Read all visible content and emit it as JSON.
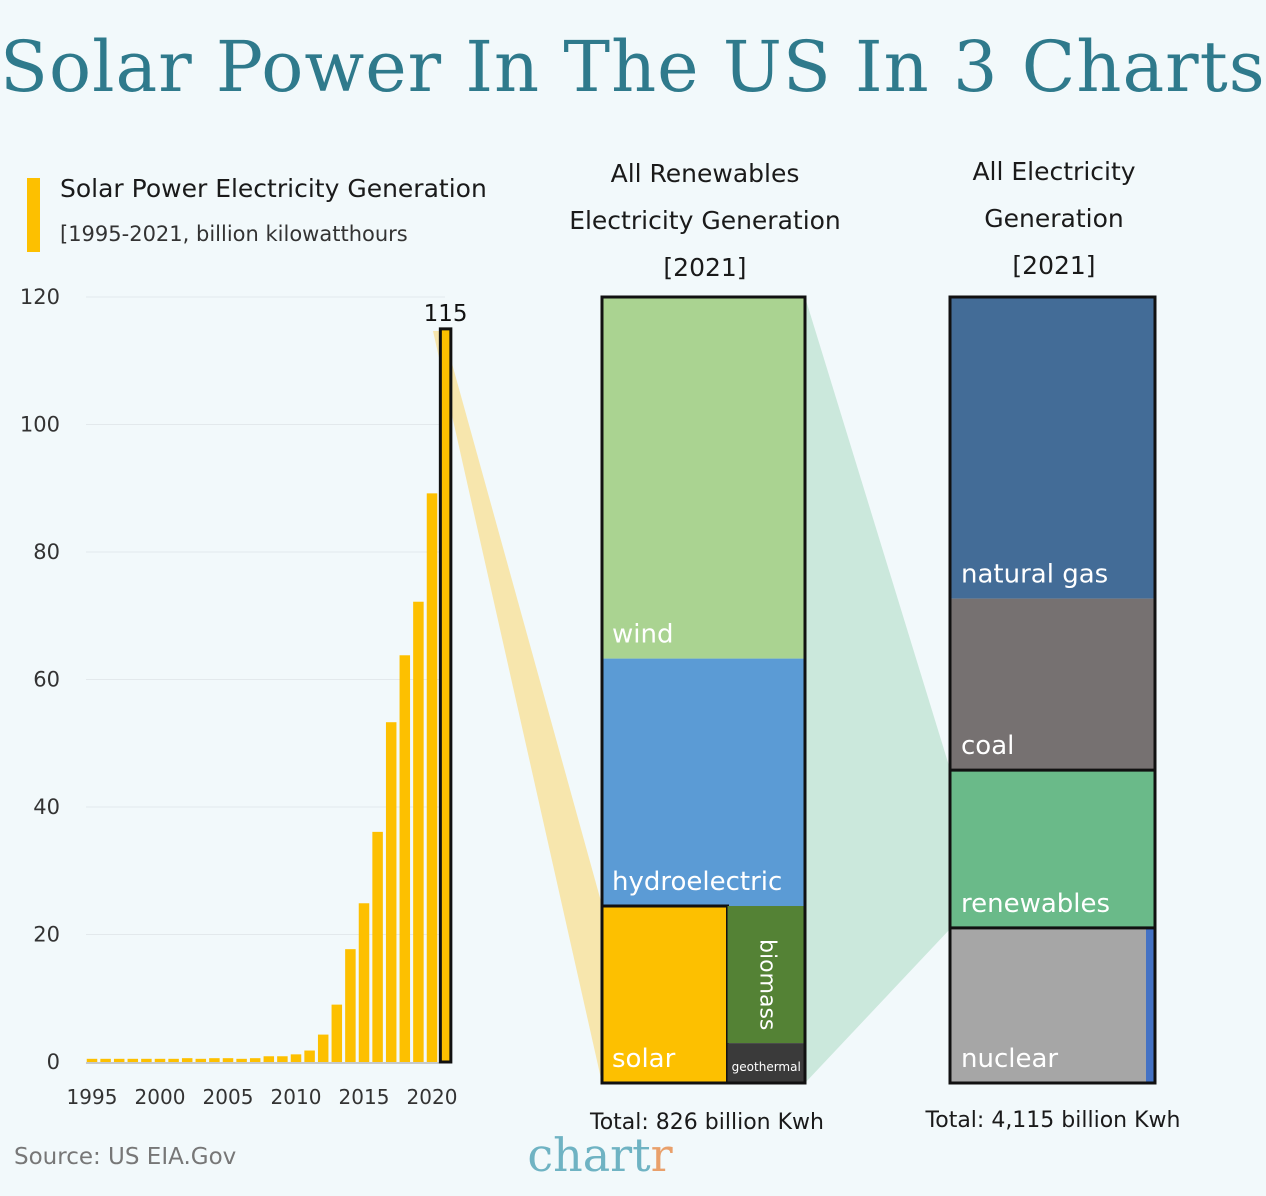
{
  "title": "Solar Power In The US In 3 Charts",
  "source": "Source: US EIA.Gov",
  "brand": {
    "text": "chart",
    "accent": "r"
  },
  "colors": {
    "solar": "#fdc000",
    "wind": "#aad391",
    "hydroelectric": "#5b9bd5",
    "biomass": "#548235",
    "geothermal": "#3a3a3a",
    "natural_gas": "#436c97",
    "coal": "#767171",
    "renewables": "#6aba89",
    "nuclear": "#a6a6a6",
    "other": "#4472c4",
    "title": "#2f7a8c"
  },
  "chart_data": [
    {
      "type": "bar",
      "title": "Solar Power Electricity Generation",
      "subtitle": "[1995-2021, billion kilowatthours",
      "x": [
        1995,
        1996,
        1997,
        1998,
        1999,
        2000,
        2001,
        2002,
        2003,
        2004,
        2005,
        2006,
        2007,
        2008,
        2009,
        2010,
        2011,
        2012,
        2013,
        2014,
        2015,
        2016,
        2017,
        2018,
        2019,
        2020,
        2021
      ],
      "values": [
        0.5,
        0.5,
        0.5,
        0.5,
        0.5,
        0.5,
        0.5,
        0.6,
        0.5,
        0.6,
        0.6,
        0.5,
        0.6,
        0.9,
        0.9,
        1.2,
        1.8,
        4.3,
        9.0,
        17.7,
        24.9,
        36.1,
        53.3,
        63.8,
        72.2,
        89.2,
        115
      ],
      "x_ticks": [
        "1995",
        "2000",
        "2005",
        "2010",
        "2015",
        "2020"
      ],
      "y_ticks": [
        "0",
        "20",
        "40",
        "60",
        "80",
        "100",
        "120"
      ],
      "ylim": [
        0,
        120
      ],
      "highlight": {
        "year": 2021,
        "label": "115"
      }
    },
    {
      "type": "treemap",
      "title": [
        "All Renewables",
        "Electricity Generation",
        "[2021]"
      ],
      "total": "Total: 826 billion Kwh",
      "segments": [
        {
          "label": "wind",
          "value": 380
        },
        {
          "label": "hydroelectric",
          "value": 260
        },
        {
          "label": "solar",
          "value": 115
        },
        {
          "label": "biomass",
          "value": 55
        },
        {
          "label": "geothermal",
          "value": 16
        }
      ]
    },
    {
      "type": "stacked-bar",
      "title": [
        "All Electricity",
        "Generation",
        "[2021]"
      ],
      "total": "Total: 4,115 billion Kwh",
      "segments": [
        {
          "label": "natural gas",
          "value": 1579
        },
        {
          "label": "coal",
          "value": 898
        },
        {
          "label": "renewables",
          "value": 826
        },
        {
          "label": "nuclear",
          "value": 778
        },
        {
          "label": "",
          "value": 34
        }
      ]
    }
  ]
}
